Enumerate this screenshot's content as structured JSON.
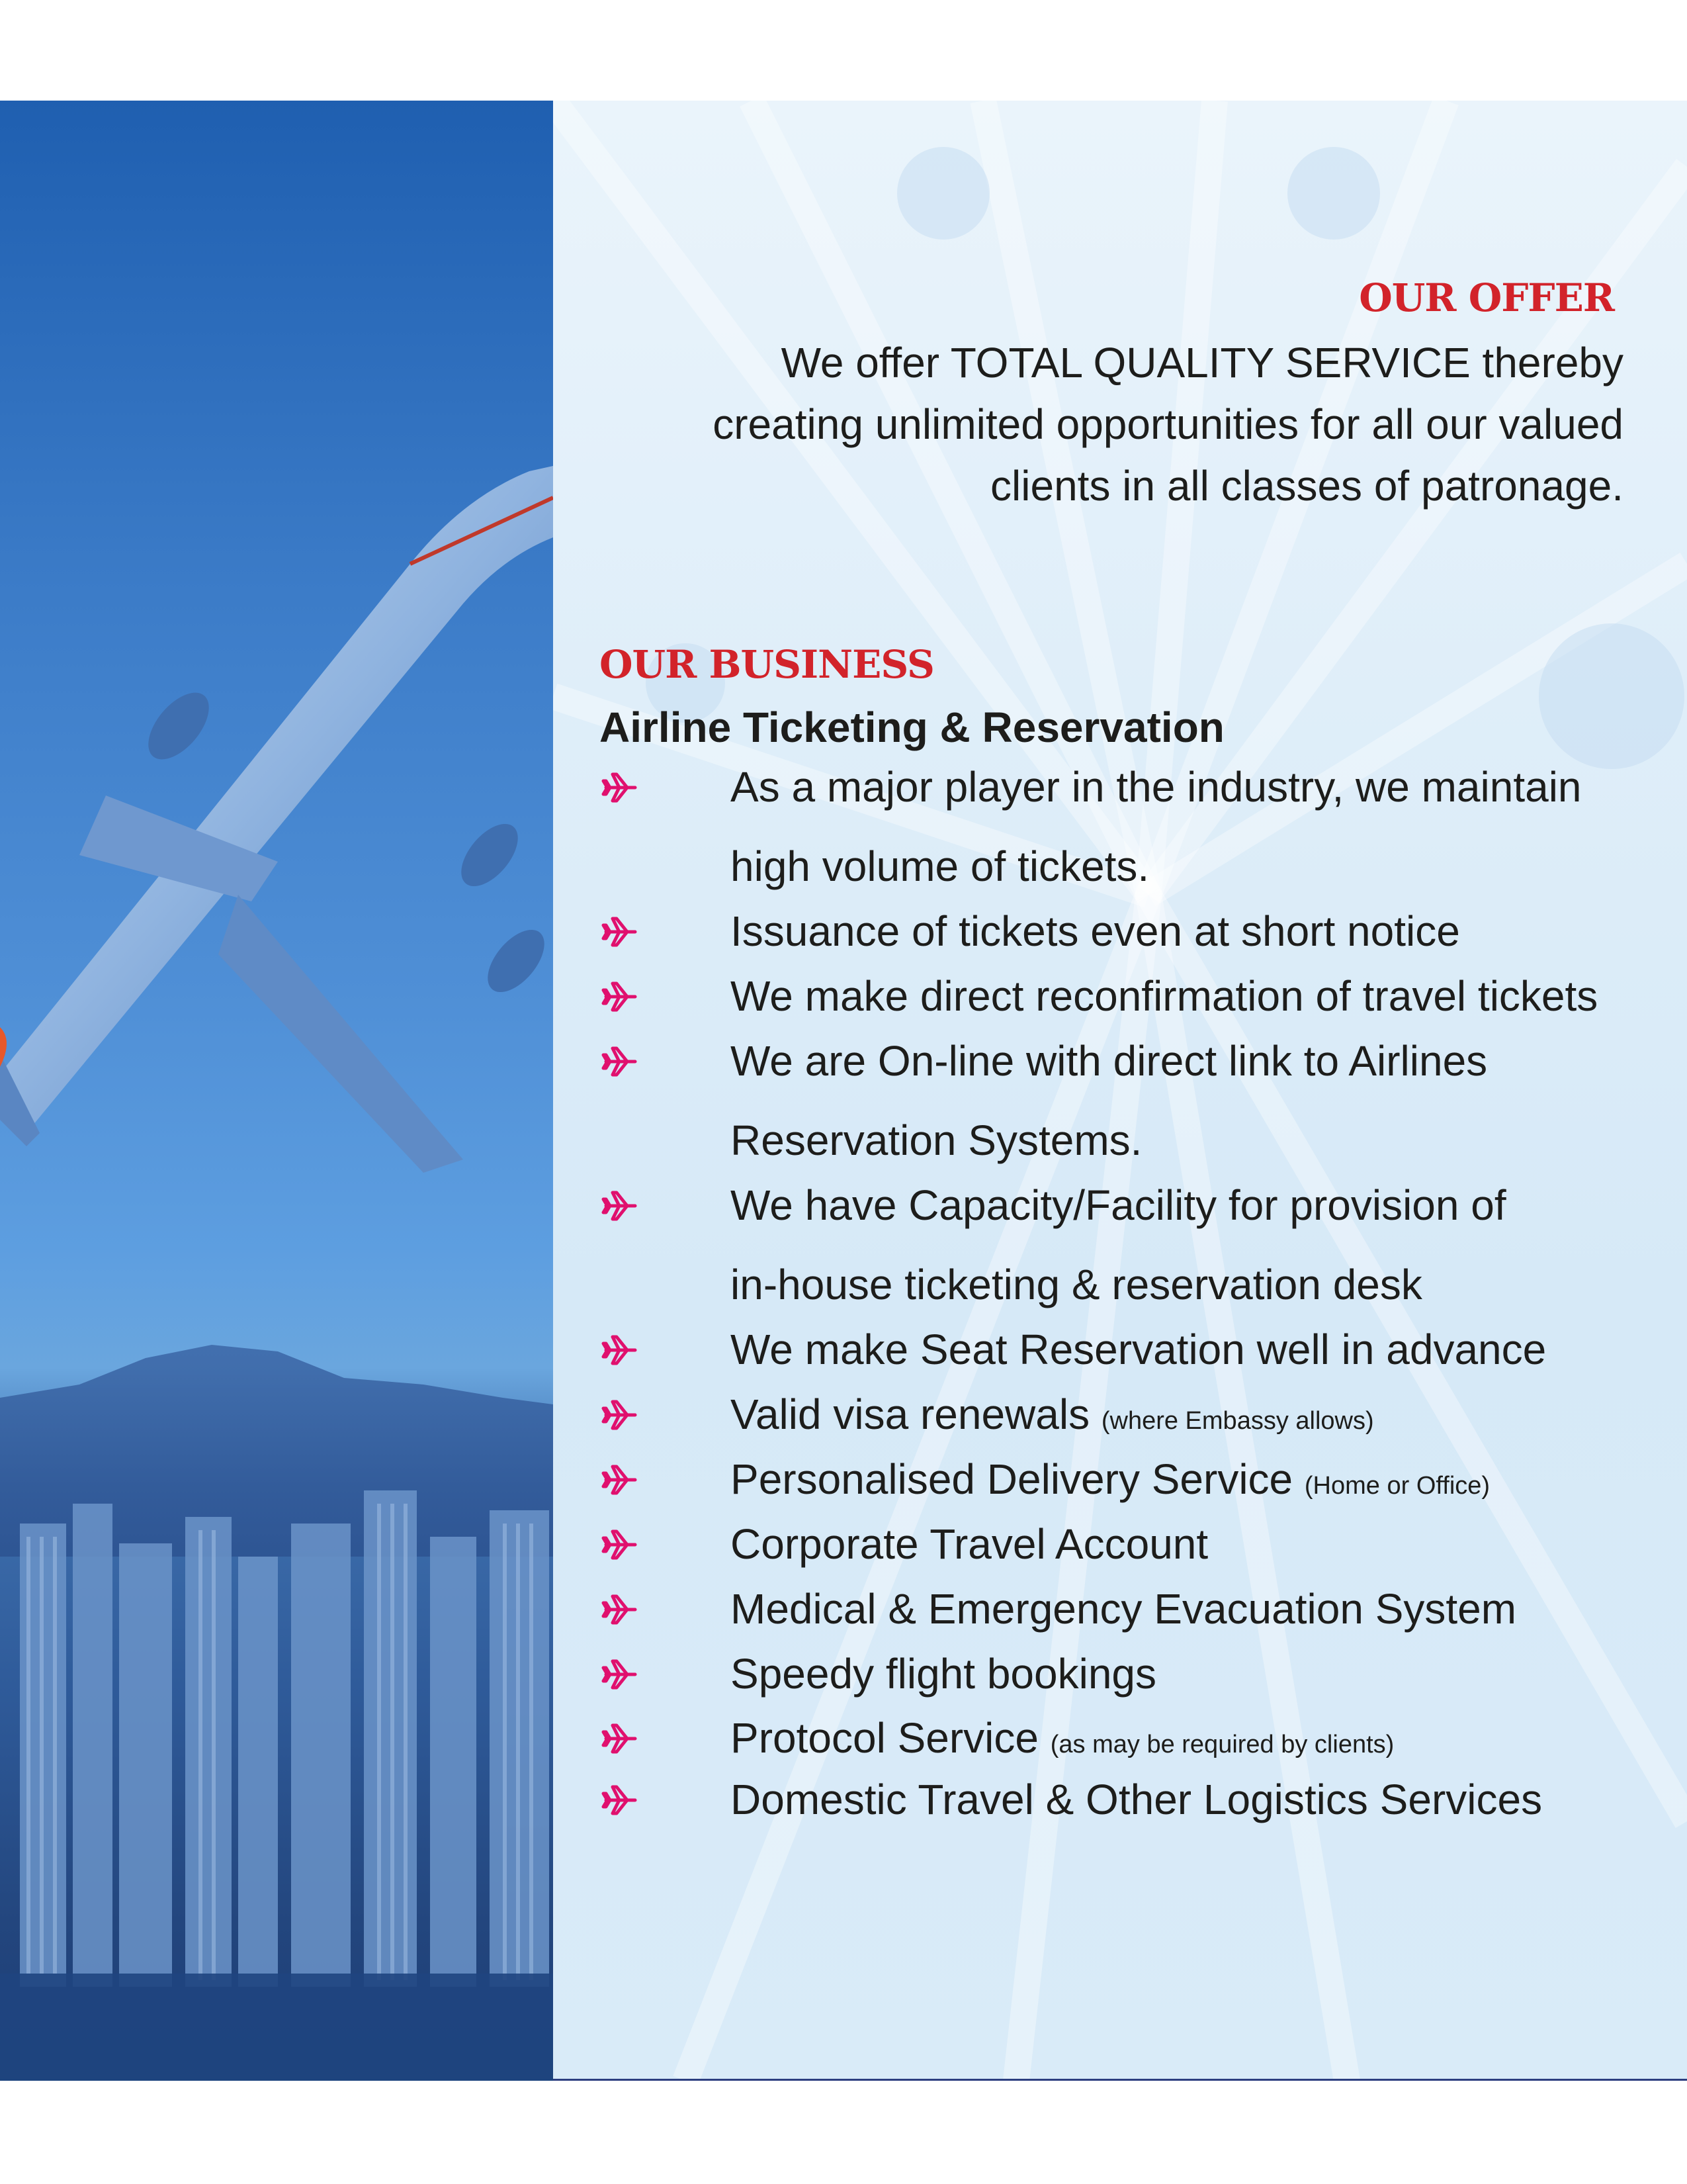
{
  "offer": {
    "heading": "OUR OFFER",
    "lines": [
      "We offer TOTAL QUALITY SERVICE thereby",
      "creating unlimited opportunities for all our valued",
      "clients in all classes of patronage."
    ]
  },
  "business": {
    "heading": "OUR BUSINESS",
    "subheading": "Airline Ticketing & Reservation",
    "items": [
      {
        "line1": "As a major player in the industry, we maintain",
        "line2": "high volume of tickets."
      },
      {
        "line1": "Issuance of tickets even at short notice"
      },
      {
        "line1": "We make direct reconfirmation of travel tickets"
      },
      {
        "line1": "We are On-line with direct link to Airlines",
        "line2": "Reservation Systems."
      },
      {
        "line1": "We have Capacity/Facility for provision of",
        "line2": "in-house ticketing & reservation desk"
      },
      {
        "line1": "We make Seat Reservation well in advance"
      },
      {
        "line1": "Valid visa renewals",
        "note": "(where Embassy allows)"
      },
      {
        "line1": "Personalised Delivery Service",
        "note": "(Home or Office)"
      },
      {
        "line1": "Corporate Travel Account"
      },
      {
        "line1": "Medical & Emergency Evacuation System"
      },
      {
        "line1": "Speedy flight bookings"
      },
      {
        "line1": "Protocol Service",
        "note": "(as may be required by clients)"
      },
      {
        "line1": "Domestic Travel & Other Logistics Services"
      }
    ]
  },
  "bullet_icon": "airplane-icon",
  "colors": {
    "heading_red": "#d2232a",
    "bullet_magenta": "#e0106e",
    "text": "#1d1d1b",
    "photo_blue": "#2f6fc0",
    "panel_bg": "#dfeef9"
  }
}
